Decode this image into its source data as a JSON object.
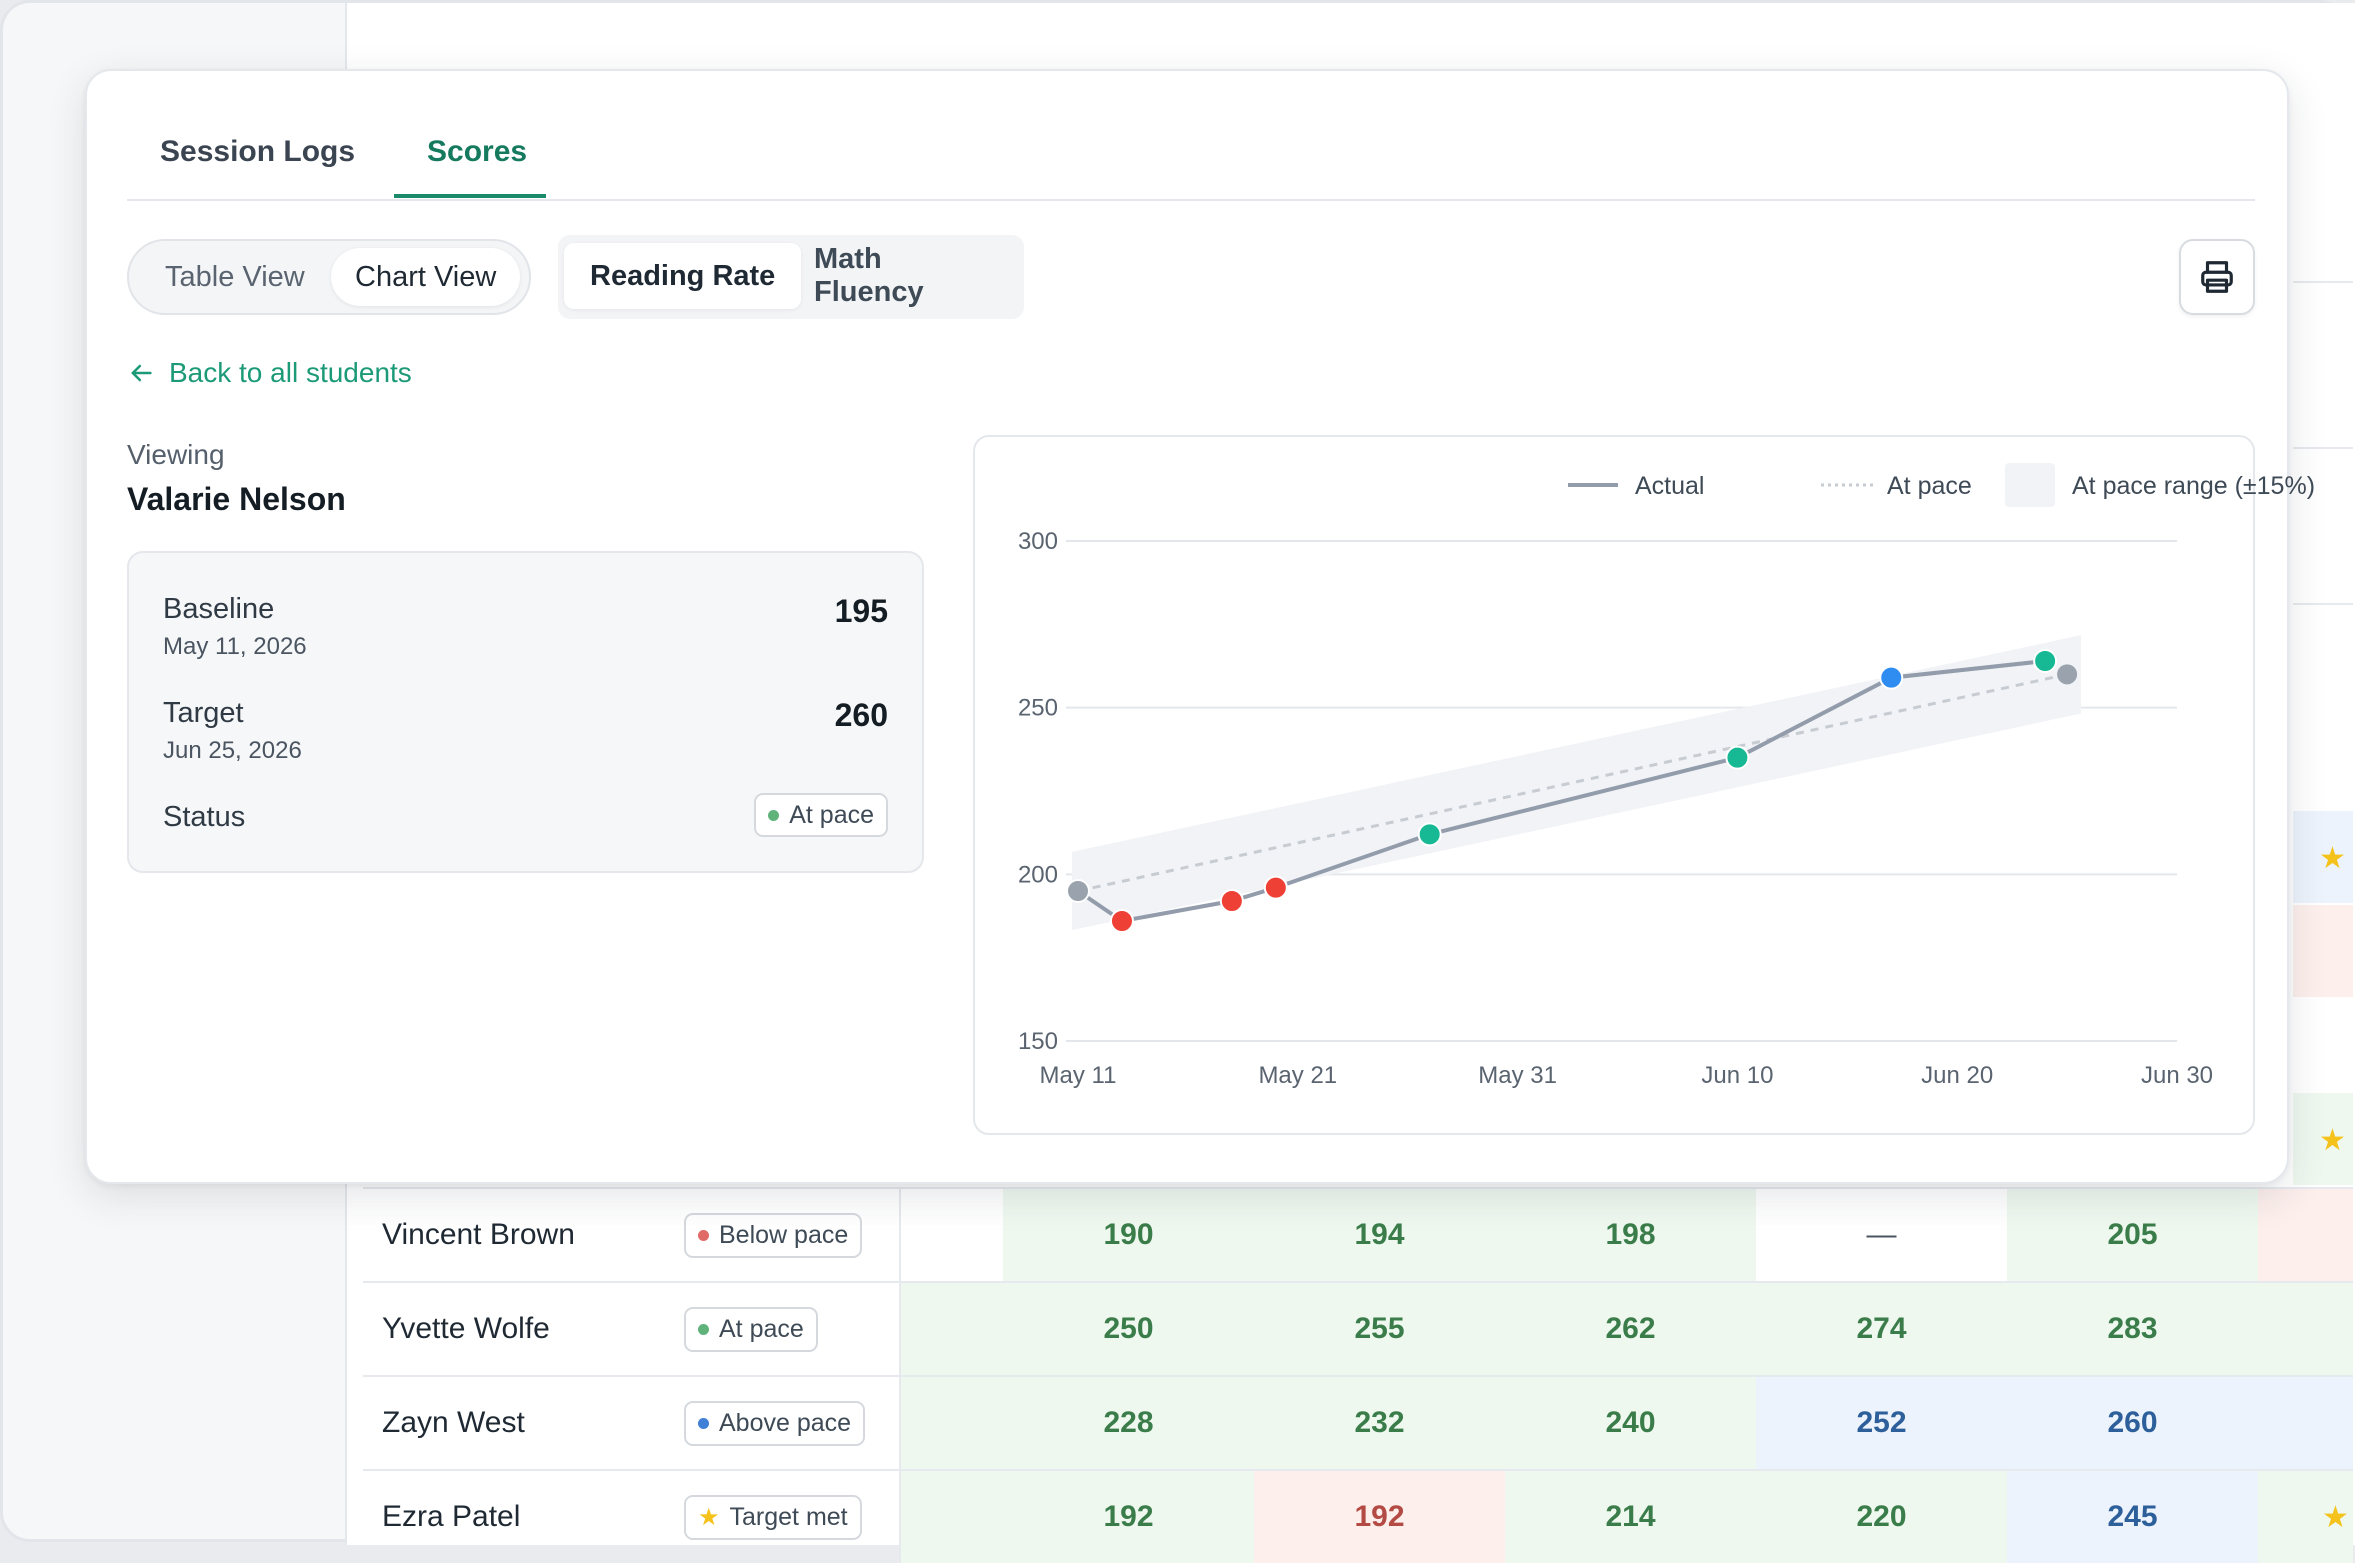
{
  "tabs": [
    {
      "label": "Session Logs",
      "active": false
    },
    {
      "label": "Scores",
      "active": true
    }
  ],
  "view_toggle": {
    "options": [
      "Table View",
      "Chart View"
    ],
    "selected": "Chart View"
  },
  "metric_toggle": {
    "options": [
      "Reading Rate",
      "Math Fluency"
    ],
    "selected": "Reading Rate"
  },
  "print_button": {
    "icon": "printer-icon"
  },
  "back_link": {
    "label": "Back to all students",
    "icon": "arrow-left-icon"
  },
  "viewing": {
    "label": "Viewing",
    "student": "Valarie Nelson"
  },
  "summary": {
    "baseline_label": "Baseline",
    "baseline_date": "May 11, 2026",
    "baseline_value": "195",
    "target_label": "Target",
    "target_date": "Jun 25, 2026",
    "target_value": "260",
    "status_label": "Status",
    "status_value": "At pace"
  },
  "colors": {
    "accent": "#1b8a6a",
    "below": "#ef4035",
    "at": "#17b894",
    "above": "#2f8cf0",
    "neutral": "#9aa3ad",
    "line": "#939cab"
  },
  "chart_data": {
    "type": "line",
    "legend": [
      "Actual",
      "At pace",
      "At pace range (±15%)"
    ],
    "legend_position": "top-right",
    "x_ticks": [
      "May 11",
      "May 21",
      "May 31",
      "Jun 10",
      "Jun 20",
      "Jun 30"
    ],
    "x_range": [
      "2026-05-11",
      "2026-06-30"
    ],
    "y_ticks": [
      150,
      200,
      250,
      300
    ],
    "ylim": [
      150,
      300
    ],
    "grid": true,
    "series": [
      {
        "name": "Actual",
        "points": [
          {
            "x": "2026-05-11",
            "y": 195,
            "status": "baseline"
          },
          {
            "x": "2026-05-13",
            "y": 186,
            "status": "below"
          },
          {
            "x": "2026-05-18",
            "y": 192,
            "status": "below"
          },
          {
            "x": "2026-05-20",
            "y": 196,
            "status": "below"
          },
          {
            "x": "2026-05-27",
            "y": 212,
            "status": "at"
          },
          {
            "x": "2026-06-10",
            "y": 235,
            "status": "at"
          },
          {
            "x": "2026-06-17",
            "y": 259,
            "status": "above"
          },
          {
            "x": "2026-06-24",
            "y": 264,
            "status": "at"
          }
        ]
      },
      {
        "name": "At pace",
        "points": [
          {
            "x": "2026-05-11",
            "y": 195
          },
          {
            "x": "2026-06-25",
            "y": 260
          }
        ]
      }
    ],
    "target_point": {
      "x": "2026-06-25",
      "y": 260
    }
  },
  "bg_table": {
    "rows": [
      {
        "name": "Vincent Brown",
        "status": "Below pace",
        "status_color": "#e06a66",
        "cells": [
          [
            "white",
            ""
          ],
          [
            "green",
            "190"
          ],
          [
            "green",
            "194"
          ],
          [
            "green",
            "198"
          ],
          [
            "white",
            "—"
          ],
          [
            "green",
            "205"
          ]
        ],
        "edge": "red"
      },
      {
        "name": "Yvette Wolfe",
        "status": "At pace",
        "status_color": "#5fb37a",
        "cells": [
          [
            "green",
            ""
          ],
          [
            "green",
            "250"
          ],
          [
            "green",
            "255"
          ],
          [
            "green",
            "262"
          ],
          [
            "green",
            "274"
          ],
          [
            "green",
            "283"
          ]
        ],
        "edge": "green"
      },
      {
        "name": "Zayn West",
        "status": "Above pace",
        "status_color": "#3f7fd6",
        "cells": [
          [
            "green",
            ""
          ],
          [
            "green",
            "228"
          ],
          [
            "green",
            "232"
          ],
          [
            "green",
            "240"
          ],
          [
            "blue",
            "252"
          ],
          [
            "blue",
            "260"
          ]
        ],
        "edge": "blue"
      },
      {
        "name": "Ezra Patel",
        "status": "Target met",
        "status_color": "star",
        "cells": [
          [
            "green",
            ""
          ],
          [
            "green",
            "192"
          ],
          [
            "red",
            "192"
          ],
          [
            "green",
            "214"
          ],
          [
            "green",
            "220"
          ],
          [
            "blue",
            "245"
          ]
        ],
        "edge": "star"
      }
    ]
  }
}
